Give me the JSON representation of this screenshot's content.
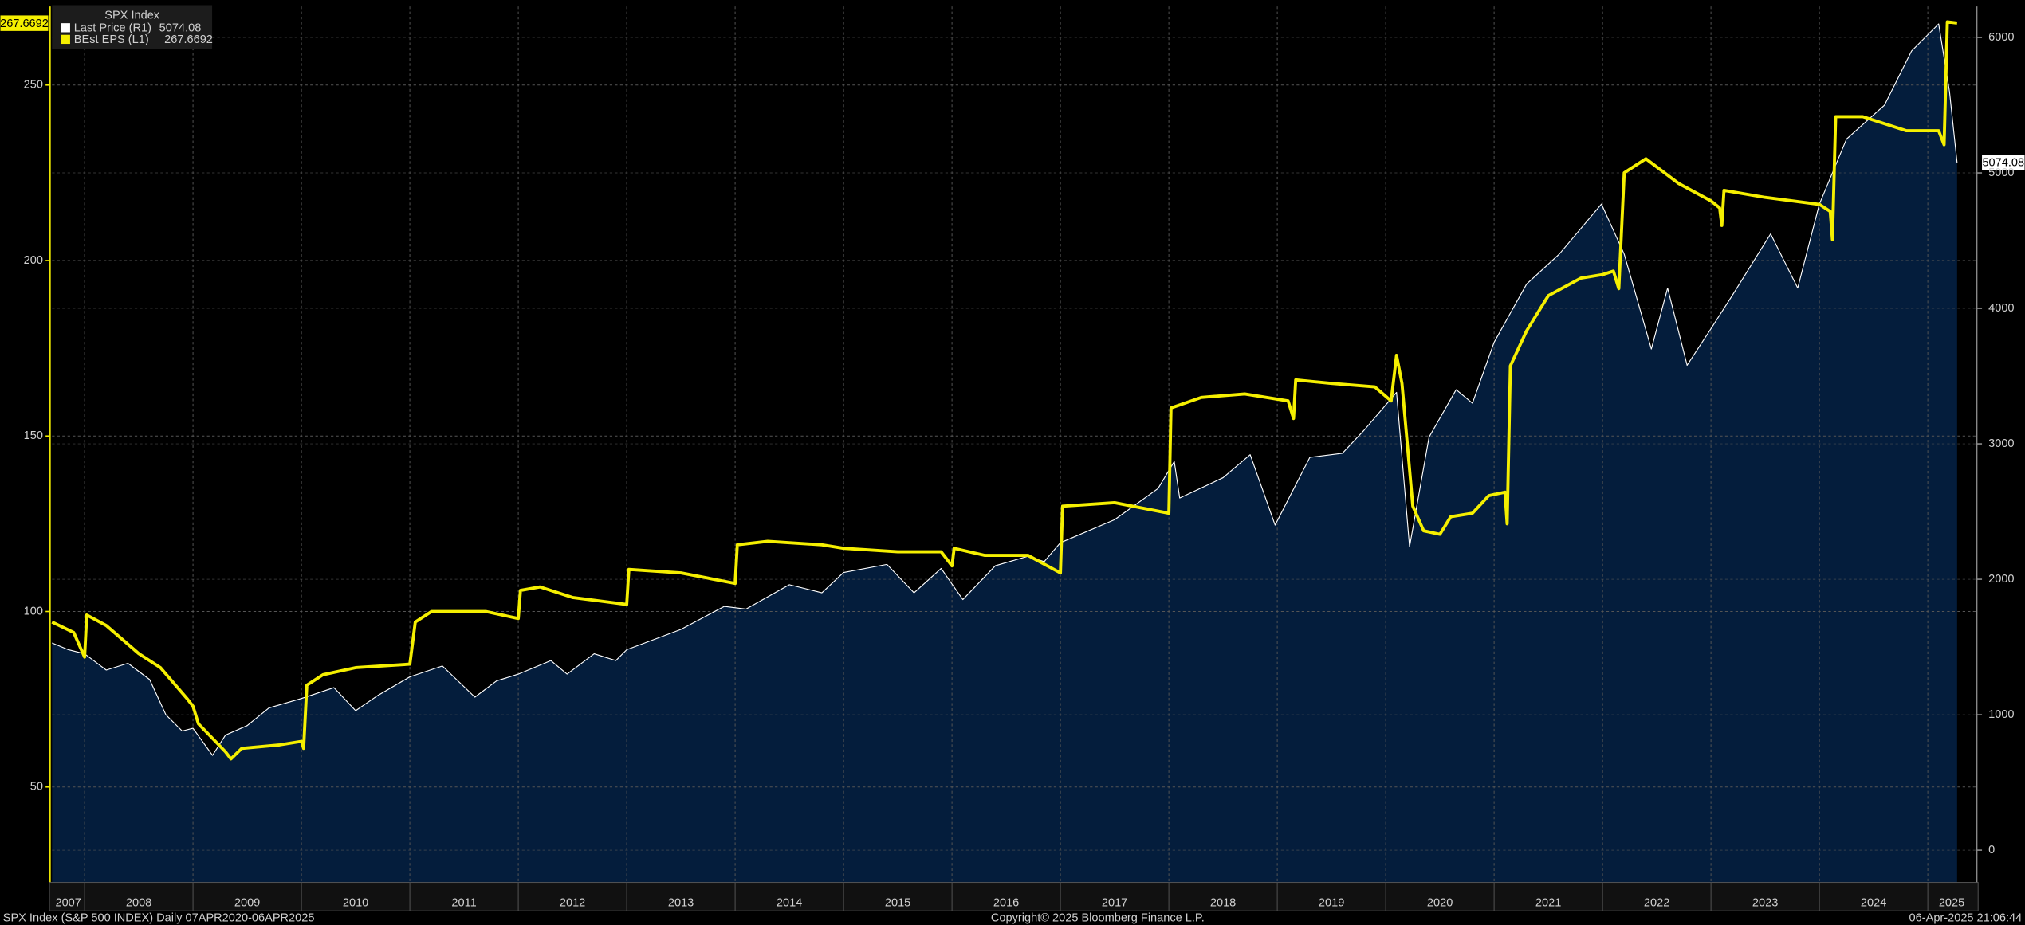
{
  "chart_data": {
    "type": "line",
    "title": "SPX Index",
    "xlim": [
      2007.7,
      2025.44
    ],
    "xticks": [
      2008,
      2009,
      2010,
      2011,
      2012,
      2013,
      2014,
      2015,
      2016,
      2017,
      2018,
      2019,
      2020,
      2021,
      2022,
      2023,
      2024,
      2025
    ],
    "x_labels": [
      2007,
      2008,
      2009,
      2010,
      2011,
      2012,
      2013,
      2014,
      2015,
      2016,
      2017,
      2018,
      2019,
      2020,
      2021,
      2022,
      2023,
      2024,
      2025
    ],
    "ylim": [
      22.8,
      272.4
    ],
    "yticks": [
      50,
      100,
      150,
      200,
      250
    ],
    "y2lim": [
      -238,
      6229
    ],
    "y2ticks": [
      0,
      1000,
      2000,
      3000,
      4000,
      5000,
      6000
    ],
    "grid": true,
    "series": [
      {
        "name": "Last Price (R1)",
        "color": "#ffffff",
        "area_color": "#041d3c",
        "axis": "y2",
        "x": [
          2007.7,
          2007.85,
          2008.0,
          2008.2,
          2008.4,
          2008.6,
          2008.75,
          2008.9,
          2009.0,
          2009.18,
          2009.3,
          2009.5,
          2009.7,
          2010.0,
          2010.3,
          2010.5,
          2010.7,
          2011.0,
          2011.3,
          2011.6,
          2011.8,
          2012.0,
          2012.3,
          2012.45,
          2012.7,
          2012.9,
          2013.0,
          2013.5,
          2013.9,
          2014.1,
          2014.5,
          2014.8,
          2015.0,
          2015.4,
          2015.65,
          2015.9,
          2016.1,
          2016.4,
          2016.7,
          2016.85,
          2017.0,
          2017.5,
          2017.9,
          2018.05,
          2018.1,
          2018.5,
          2018.75,
          2018.98,
          2019.3,
          2019.6,
          2019.8,
          2020.1,
          2020.22,
          2020.4,
          2020.65,
          2020.8,
          2021.0,
          2021.3,
          2021.6,
          2021.99,
          2022.2,
          2022.45,
          2022.6,
          2022.78,
          2023.0,
          2023.2,
          2023.55,
          2023.8,
          2024.0,
          2024.25,
          2024.6,
          2024.85,
          2025.1,
          2025.2,
          2025.27
        ],
        "values": [
          1530,
          1480,
          1450,
          1330,
          1380,
          1260,
          1000,
          880,
          900,
          700,
          850,
          920,
          1050,
          1120,
          1200,
          1030,
          1140,
          1280,
          1360,
          1130,
          1250,
          1300,
          1400,
          1300,
          1450,
          1400,
          1480,
          1630,
          1800,
          1780,
          1960,
          1900,
          2050,
          2110,
          1900,
          2080,
          1850,
          2100,
          2170,
          2130,
          2270,
          2440,
          2670,
          2870,
          2600,
          2750,
          2920,
          2400,
          2900,
          2930,
          3100,
          3380,
          2240,
          3050,
          3400,
          3300,
          3750,
          4180,
          4400,
          4770,
          4400,
          3700,
          4150,
          3580,
          3850,
          4100,
          4550,
          4150,
          4770,
          5250,
          5500,
          5900,
          6100,
          5600,
          5074.08
        ]
      },
      {
        "name": "BEst EPS (L1)",
        "color": "#f5ef00",
        "axis": "y",
        "x": [
          2007.7,
          2007.9,
          2008.0,
          2008.02,
          2008.2,
          2008.5,
          2008.7,
          2008.95,
          2009.0,
          2009.05,
          2009.3,
          2009.35,
          2009.45,
          2009.8,
          2010.0,
          2010.02,
          2010.05,
          2010.2,
          2010.5,
          2011.0,
          2011.05,
          2011.2,
          2011.7,
          2012.0,
          2012.02,
          2012.2,
          2012.5,
          2013.0,
          2013.02,
          2013.5,
          2014.0,
          2014.02,
          2014.3,
          2014.8,
          2015.0,
          2015.5,
          2015.9,
          2016.0,
          2016.02,
          2016.3,
          2016.7,
          2017.0,
          2017.02,
          2017.5,
          2018.0,
          2018.02,
          2018.3,
          2018.7,
          2019.1,
          2019.15,
          2019.17,
          2019.5,
          2019.9,
          2020.05,
          2020.1,
          2020.15,
          2020.25,
          2020.35,
          2020.5,
          2020.6,
          2020.8,
          2020.95,
          2021.1,
          2021.12,
          2021.15,
          2021.3,
          2021.5,
          2021.8,
          2022.0,
          2022.1,
          2022.15,
          2022.2,
          2022.4,
          2022.7,
          2023.0,
          2023.08,
          2023.1,
          2023.12,
          2023.5,
          2024.0,
          2024.1,
          2024.12,
          2024.15,
          2024.4,
          2024.8,
          2025.1,
          2025.15,
          2025.18,
          2025.27
        ],
        "values": [
          97,
          94,
          87,
          99,
          96,
          88,
          84,
          75,
          73,
          68,
          60,
          58,
          61,
          62,
          63,
          61,
          79,
          82,
          84,
          85,
          97,
          100,
          100,
          98,
          106,
          107,
          104,
          102,
          112,
          111,
          108,
          119,
          120,
          119,
          118,
          117,
          117,
          113,
          118,
          116,
          116,
          111,
          130,
          131,
          128,
          158,
          161,
          162,
          160,
          155,
          166,
          165,
          164,
          160,
          173,
          165,
          130,
          123,
          122,
          127,
          128,
          133,
          134,
          125,
          170,
          180,
          190,
          195,
          196,
          197,
          192,
          225,
          229,
          222,
          217,
          215,
          210,
          220,
          218,
          216,
          214,
          206,
          241,
          241,
          237,
          237,
          233,
          268,
          267.6692
        ]
      }
    ],
    "footer": {
      "left": "SPX Index (S&P 500 INDEX)  Daily 07APR2020-06APR2025",
      "center": "Copyright© 2025 Bloomberg Finance L.P.",
      "right": "06-Apr-2025 21:06:44"
    }
  }
}
